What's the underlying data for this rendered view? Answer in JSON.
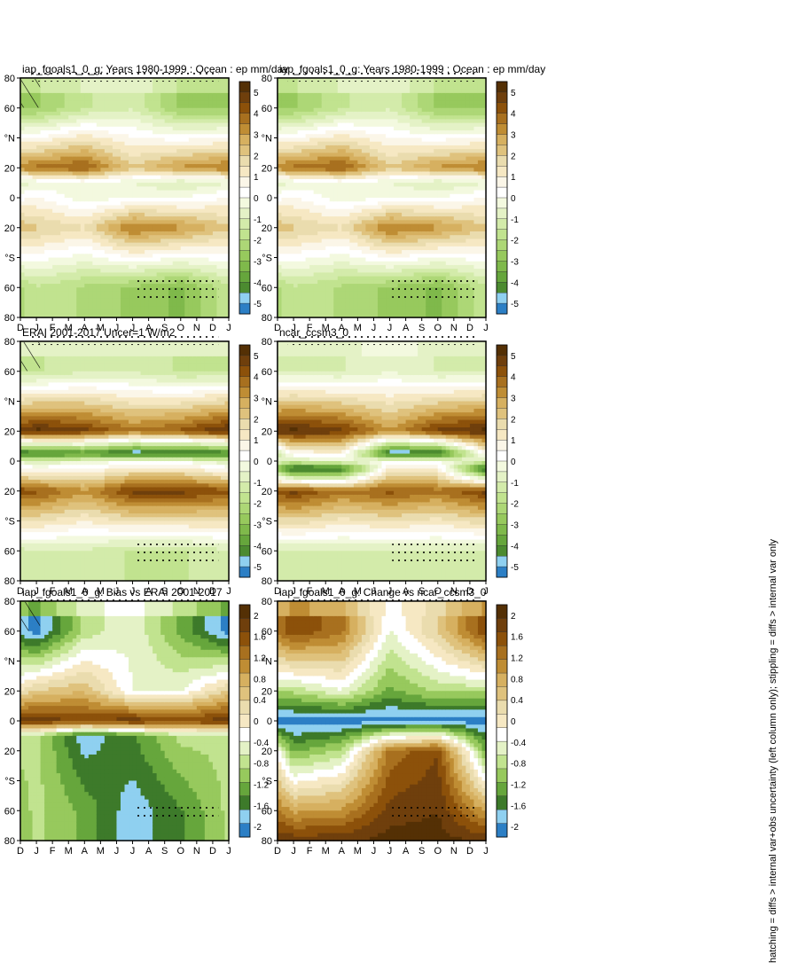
{
  "footnote": "hatching = diffs > internal var+obs uncertainty (left column only); stippling = diffs > internal var only",
  "chart_data": {
    "type": "heatmap",
    "x_axis": {
      "label": "",
      "ticks": [
        "D",
        "J",
        "F",
        "M",
        "A",
        "M",
        "J",
        "J",
        "A",
        "S",
        "O",
        "N",
        "D",
        "J"
      ]
    },
    "y_axis": {
      "label": "",
      "ticks": [
        "80",
        "60",
        "°N",
        "20",
        "0",
        "20",
        "°S",
        "60",
        "80"
      ]
    },
    "colorbar_main": {
      "labels": [
        "5",
        "4",
        "3",
        "2",
        "1",
        "0",
        "-1",
        "-2",
        "-3",
        "-4",
        "-5"
      ],
      "colors": [
        "#543005",
        "#6f3f0c",
        "#8c510a",
        "#a8701f",
        "#bf8d34",
        "#d6b060",
        "#dfc27d",
        "#eadcae",
        "#f6e8c3",
        "#fbf6e8",
        "#ffffff",
        "#f3f9df",
        "#e4f2c6",
        "#d3ebaa",
        "#c1e38f",
        "#add776",
        "#97c95d",
        "#7fb94b",
        "#66a63c",
        "#4c8b30",
        "#8fd0f0",
        "#2c7fc5"
      ]
    },
    "colorbar_diff": {
      "labels": [
        "2",
        "1.6",
        "1.2",
        "0.8",
        "0.4",
        "0",
        "-0.4",
        "-0.8",
        "-1.2",
        "-1.6",
        "-2"
      ]
    },
    "panels": [
      {
        "id": "p1",
        "title": "iap_fgoals1_0_g: Years 1980-1999 : Ocean : ep mm/day",
        "colorbar": "main",
        "units": "mm/day",
        "hatched": true,
        "data_by_month": [
          {
            "month": "Jan",
            "band_means": {
              "60N": -2.5,
              "20N": 3.5,
              "10N": -0.5,
              "0": 0.5,
              "20S": 2.0,
              "60S": -1.5
            }
          },
          {
            "month": "Apr",
            "band_means": {
              "60N": -1.5,
              "20N": 4.0,
              "10N": 0.0,
              "0": -0.3,
              "20S": 1.5,
              "60S": -2.0
            }
          },
          {
            "month": "Jul",
            "band_means": {
              "60N": -1.0,
              "20N": 2.0,
              "10N": -0.5,
              "0": 0.0,
              "20S": 3.5,
              "60S": -2.5
            }
          },
          {
            "month": "Oct",
            "band_means": {
              "60N": -2.5,
              "20N": 3.0,
              "10N": -1.0,
              "0": 0.0,
              "20S": 3.0,
              "60S": -3.0
            }
          }
        ]
      },
      {
        "id": "p2",
        "title": "iap_fgoals1_0_g: Years 1980-1999 : Ocean : ep mm/day",
        "colorbar": "main",
        "units": "mm/day",
        "hatched": false,
        "data_by_month": [
          {
            "month": "Jan",
            "band_means": {
              "60N": -2.5,
              "20N": 3.5,
              "10N": -0.5,
              "0": 0.5,
              "20S": 2.0,
              "60S": -1.5
            }
          },
          {
            "month": "Apr",
            "band_means": {
              "60N": -1.5,
              "20N": 4.0,
              "10N": 0.0,
              "0": -0.3,
              "20S": 1.5,
              "60S": -2.0
            }
          },
          {
            "month": "Jul",
            "band_means": {
              "60N": -1.0,
              "20N": 2.0,
              "10N": -0.5,
              "0": 0.0,
              "20S": 3.5,
              "60S": -2.5
            }
          },
          {
            "month": "Oct",
            "band_means": {
              "60N": -2.5,
              "20N": 3.0,
              "10N": -1.0,
              "0": 0.0,
              "20S": 3.0,
              "60S": -3.0
            }
          }
        ]
      },
      {
        "id": "p3",
        "title": "ERAI 2001-2017 Uncer=1 W/m2",
        "colorbar": "main",
        "units": "mm/day",
        "hatched": true,
        "data_by_month": [
          {
            "month": "Jan",
            "band_means": {
              "60N": -1.5,
              "20N": 5.0,
              "5N": -4.5,
              "0": -1.0,
              "20S": 4.0,
              "60S": -1.0
            }
          },
          {
            "month": "Apr",
            "band_means": {
              "60N": -1.0,
              "20N": 4.5,
              "5N": -4.0,
              "0": -0.5,
              "20S": 3.0,
              "60S": -1.0
            }
          },
          {
            "month": "Jul",
            "band_means": {
              "60N": -1.0,
              "20N": 3.5,
              "5N": -5.0,
              "0": 0.0,
              "20S": 4.5,
              "60S": -1.5
            }
          },
          {
            "month": "Oct",
            "band_means": {
              "60N": -1.5,
              "20N": 4.0,
              "5N": -5.0,
              "0": 0.0,
              "20S": 4.5,
              "60S": -1.5
            }
          }
        ]
      },
      {
        "id": "p4",
        "title": "ncar_ccsm3_0",
        "colorbar": "main",
        "units": "mm/day",
        "hatched": false,
        "data_by_month": [
          {
            "month": "Jan",
            "band_means": {
              "60N": -1.0,
              "20N": 5.0,
              "5S": -5.0,
              "0": -1.0,
              "20S": 4.5,
              "60S": -1.0
            }
          },
          {
            "month": "Apr",
            "band_means": {
              "60N": -1.0,
              "20N": 4.5,
              "5S": -4.5,
              "0": -0.5,
              "20S": 3.5,
              "60S": -1.0
            }
          },
          {
            "month": "Jul",
            "band_means": {
              "60N": -0.5,
              "20N": 3.0,
              "5N": -5.0,
              "0": 0.0,
              "20S": 4.0,
              "60S": -1.0
            }
          },
          {
            "month": "Oct",
            "band_means": {
              "60N": -1.0,
              "20N": 4.5,
              "5N": -5.0,
              "0": 0.0,
              "20S": 3.5,
              "60S": -1.0
            }
          }
        ]
      },
      {
        "id": "p5",
        "title": "iap_fgoals1_0_g: Bias vs ERAI 2001-2017",
        "colorbar": "diff",
        "units": "mm/day",
        "hatched": true,
        "data_by_month": [
          {
            "month": "Jan",
            "band_means": {
              "60N": -2.0,
              "20N": 0.4,
              "0": 1.8,
              "10S": -0.8,
              "60S": -0.8
            }
          },
          {
            "month": "Apr",
            "band_means": {
              "60N": -0.8,
              "20N": 0.6,
              "0": 1.6,
              "10S": -1.8,
              "60S": -1.2
            }
          },
          {
            "month": "Jul",
            "band_means": {
              "60N": -0.4,
              "20N": -0.4,
              "0": 1.8,
              "10S": -1.4,
              "60S": -1.8
            }
          },
          {
            "month": "Oct",
            "band_means": {
              "60N": -1.2,
              "20N": -0.4,
              "0": 1.6,
              "10S": -0.8,
              "60S": -1.4
            }
          }
        ]
      },
      {
        "id": "p6",
        "title": "iap_fgoals1_0_g: Change vs ncar_ccsm3_0",
        "colorbar": "diff",
        "units": "mm/day",
        "hatched": false,
        "data_by_month": [
          {
            "month": "Jan",
            "band_means": {
              "60N": 1.6,
              "20N": -0.8,
              "0": -2.0,
              "20S": -1.2,
              "80S": 1.8
            }
          },
          {
            "month": "Apr",
            "band_means": {
              "60N": 1.2,
              "20N": -0.4,
              "0": -2.0,
              "20S": -0.8,
              "80S": 1.8
            }
          },
          {
            "month": "Jul",
            "band_means": {
              "60N": -0.4,
              "20N": -1.2,
              "0": -2.0,
              "20S": 1.2,
              "80S": 2.0
            }
          },
          {
            "month": "Oct",
            "band_means": {
              "60N": 0.4,
              "20N": -0.8,
              "0": -2.0,
              "20S": 1.6,
              "80S": 2.0
            }
          }
        ]
      }
    ]
  }
}
